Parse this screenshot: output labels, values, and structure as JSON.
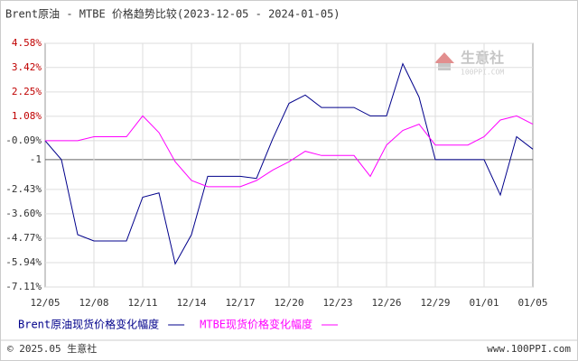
{
  "chart_data": {
    "type": "line",
    "title": "Brent原油 - MTBE 价格趋势比较(2023-12-05 - 2024-01-05)",
    "categories": [
      "12/05",
      null,
      null,
      "12/08",
      null,
      null,
      "12/11",
      null,
      null,
      "12/14",
      null,
      null,
      "12/17",
      null,
      null,
      "12/20",
      null,
      null,
      "12/23",
      null,
      null,
      "12/26",
      null,
      null,
      "12/29",
      null,
      null,
      "01/01",
      null,
      null,
      "01/05"
    ],
    "series": [
      {
        "name": "Brent原油现货价格变化幅度",
        "color": "#00008b",
        "values": [
          -0.09,
          -1.0,
          -4.6,
          -4.9,
          -4.9,
          -4.9,
          -2.8,
          -2.6,
          -6.0,
          -4.6,
          -1.8,
          -1.8,
          -1.8,
          -1.9,
          0.0,
          1.7,
          2.1,
          1.5,
          1.5,
          1.5,
          1.1,
          1.1,
          3.6,
          2.0,
          -1.0,
          -1.0,
          -1.0,
          -1.0,
          -2.7,
          0.1,
          -0.5
        ]
      },
      {
        "name": "MTBE现货价格变化幅度",
        "color": "#ff00ff",
        "values": [
          -0.09,
          -0.09,
          -0.09,
          0.1,
          0.1,
          0.1,
          1.1,
          0.3,
          -1.1,
          -2.0,
          -2.3,
          -2.3,
          -2.3,
          -2.0,
          -1.5,
          -1.1,
          -0.6,
          -0.8,
          -0.8,
          -0.8,
          -1.8,
          -0.3,
          0.4,
          0.7,
          -0.3,
          -0.3,
          -0.3,
          0.1,
          0.9,
          1.1,
          0.7
        ]
      }
    ],
    "ylim": [
      -7.11,
      4.58
    ],
    "yticks": [
      {
        "value": 4.58,
        "label": "4.58%"
      },
      {
        "value": 3.42,
        "label": "3.42%"
      },
      {
        "value": 2.25,
        "label": "2.25%"
      },
      {
        "value": 1.08,
        "label": "1.08%"
      },
      {
        "value": -0.09,
        "label": "-0.09%"
      },
      -1,
      {
        "value": -2.43,
        "label": "-2.43%"
      },
      {
        "value": -3.6,
        "label": "-3.60%"
      },
      {
        "value": -4.77,
        "label": "-4.77%"
      },
      {
        "value": -5.94,
        "label": "-5.94%"
      },
      {
        "value": -7.11,
        "label": "-7.11%"
      }
    ],
    "grid": true
  },
  "watermark": {
    "name": "生意社",
    "url": "100PPI.COM"
  },
  "footer": {
    "left": "© 2025.05 生意社",
    "right": "www.100PPI.com"
  }
}
